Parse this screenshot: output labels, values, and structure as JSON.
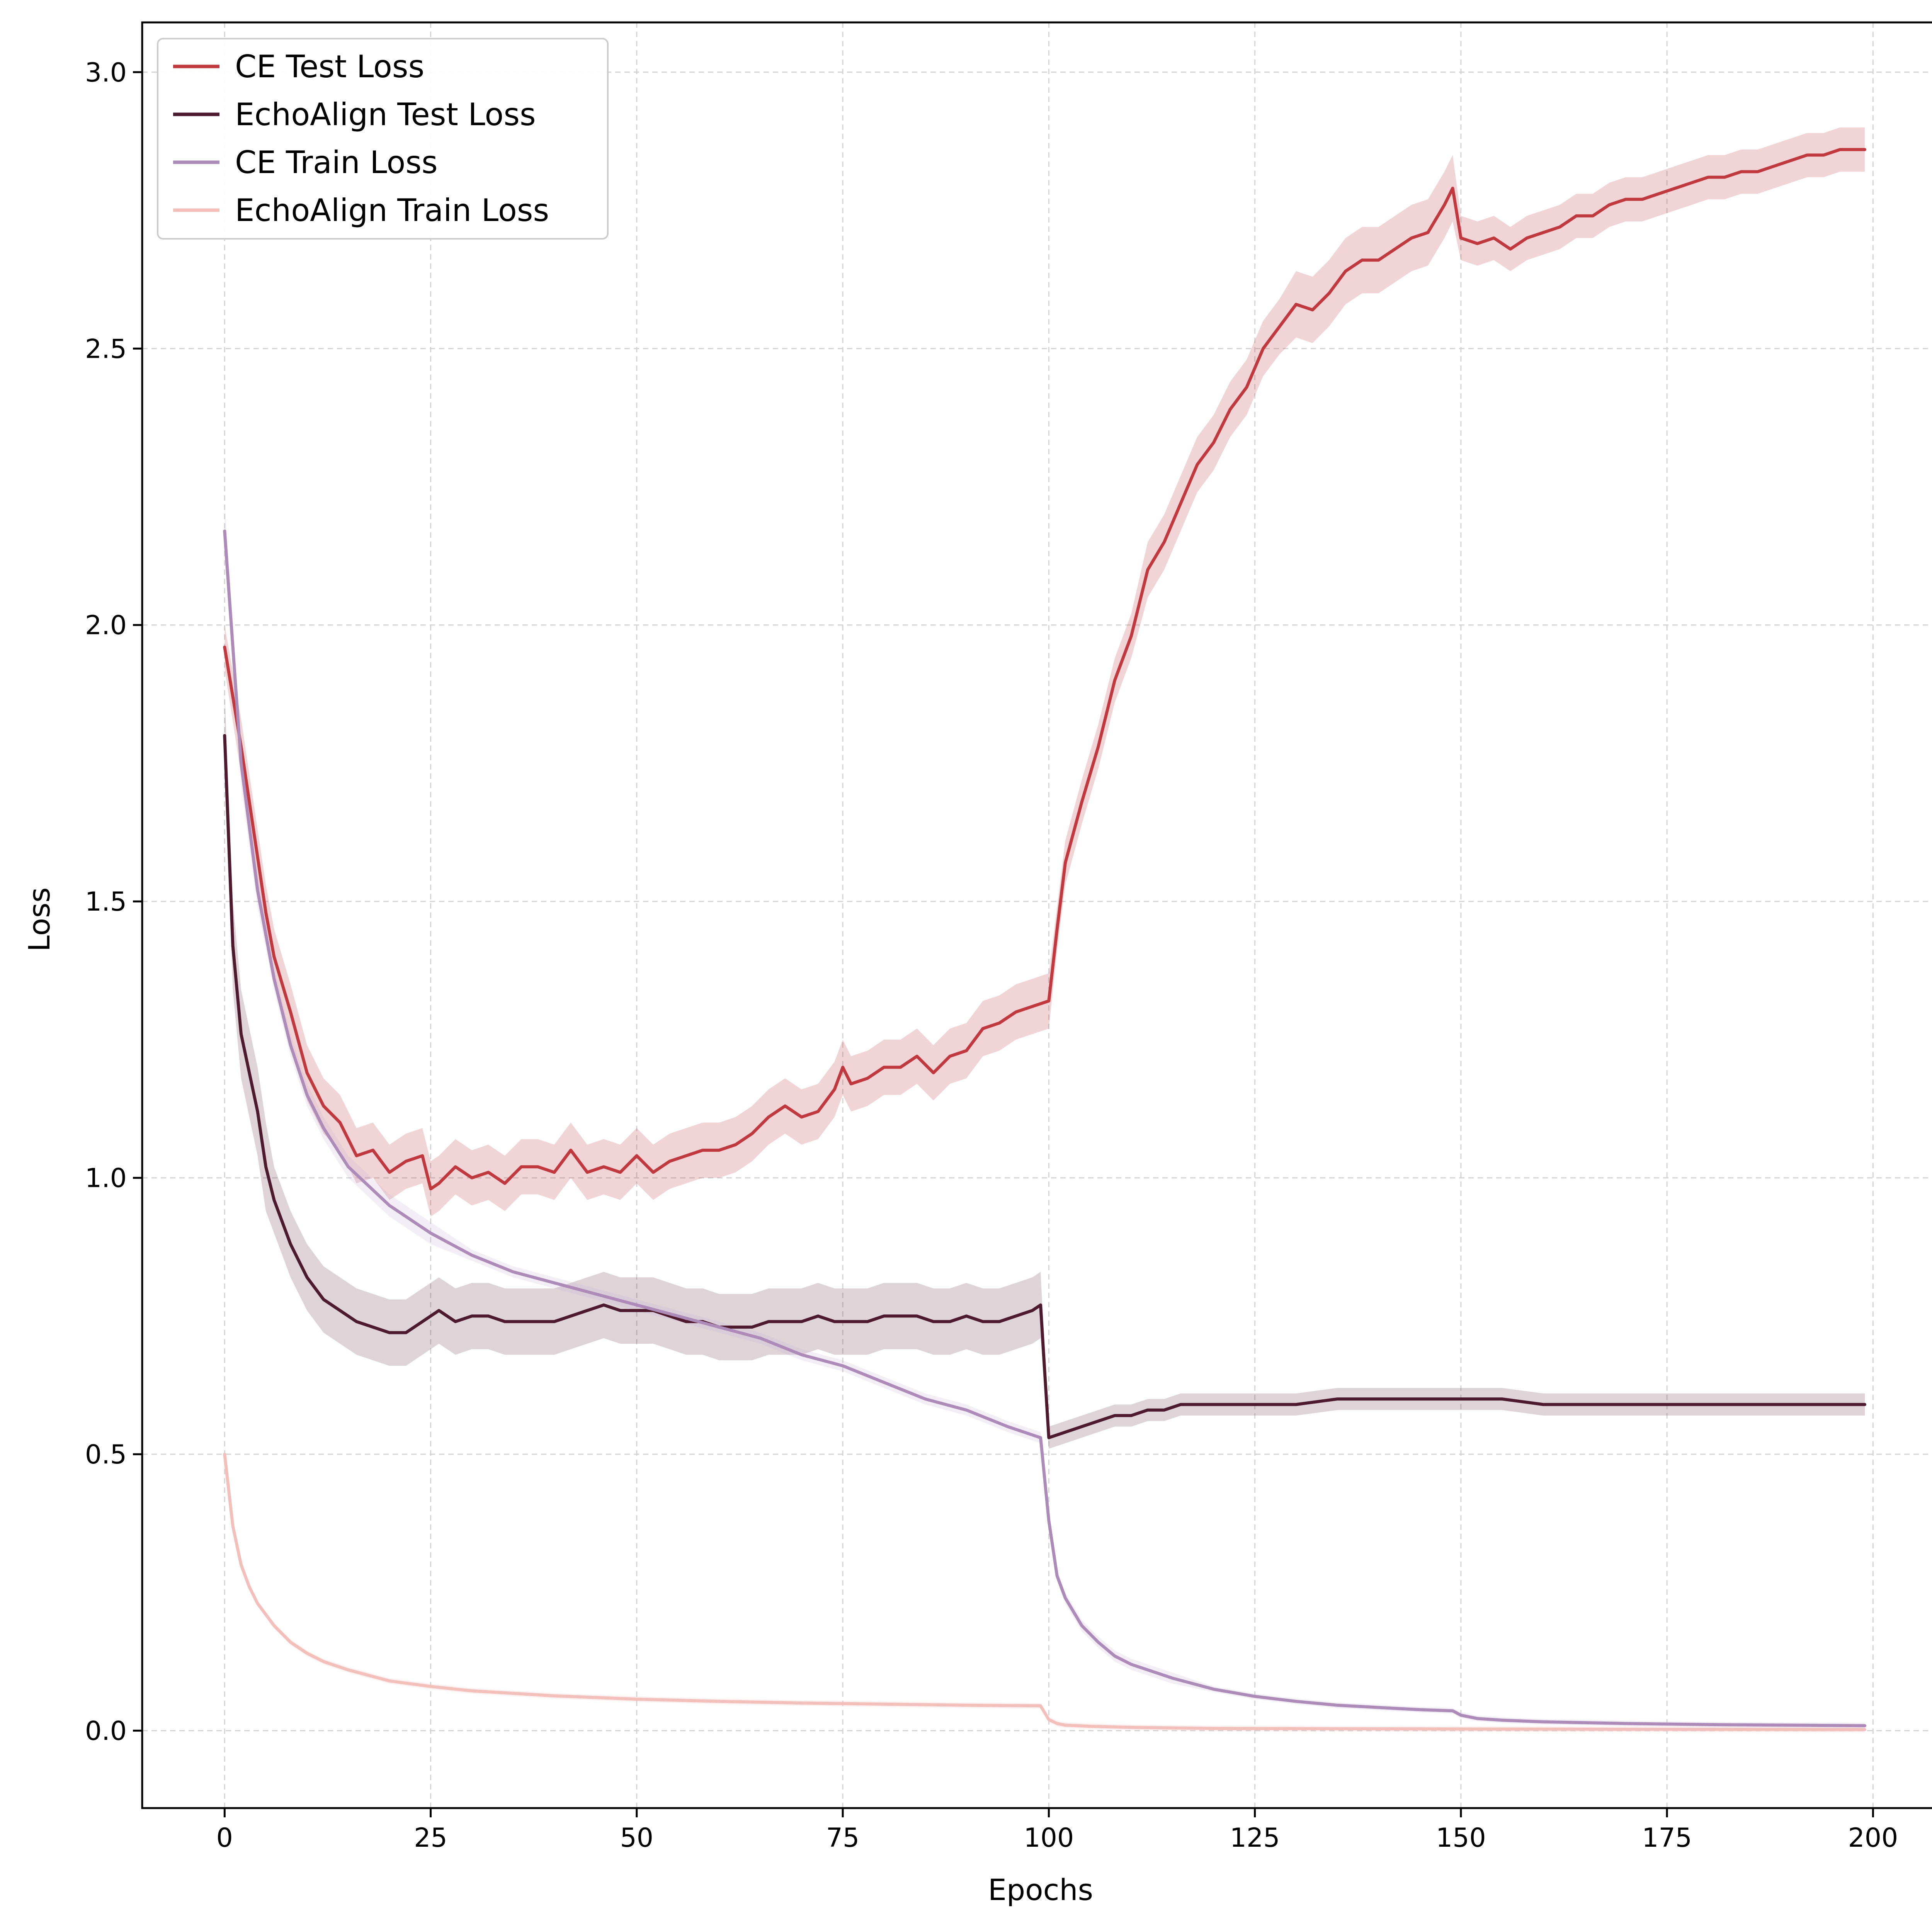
{
  "chart_data": {
    "type": "line",
    "title": "",
    "xlabel": "Epochs",
    "ylabel": "Loss",
    "xlim": [
      -10,
      208
    ],
    "ylim": [
      -0.14,
      3.09
    ],
    "xticks": [
      0,
      25,
      50,
      75,
      100,
      125,
      150,
      175,
      200
    ],
    "xtick_labels": [
      "0",
      "25",
      "50",
      "75",
      "100",
      "125",
      "150",
      "175",
      "200"
    ],
    "yticks": [
      0.0,
      0.5,
      1.0,
      1.5,
      2.0,
      2.5,
      3.0
    ],
    "ytick_labels": [
      "0.0",
      "0.5",
      "1.0",
      "1.5",
      "2.0",
      "2.5",
      "3.0"
    ],
    "grid": true,
    "legend_position": "top-left",
    "shaded_band": "variation across runs",
    "series": [
      {
        "name": "CE Test Loss",
        "color": "#c0393f",
        "band_color": "#c0393f",
        "x": [
          0,
          2,
          5,
          6,
          8,
          10,
          12,
          14,
          16,
          18,
          20,
          22,
          24,
          25,
          26,
          28,
          30,
          32,
          34,
          36,
          38,
          40,
          42,
          44,
          46,
          48,
          50,
          52,
          54,
          56,
          58,
          60,
          62,
          64,
          66,
          68,
          70,
          72,
          74,
          75,
          76,
          78,
          80,
          82,
          84,
          86,
          88,
          90,
          92,
          94,
          96,
          98,
          100,
          101,
          102,
          104,
          106,
          108,
          110,
          112,
          114,
          116,
          118,
          120,
          122,
          124,
          126,
          128,
          130,
          132,
          134,
          136,
          138,
          140,
          142,
          144,
          146,
          148,
          149,
          150,
          152,
          154,
          156,
          158,
          160,
          162,
          164,
          166,
          168,
          170,
          172,
          174,
          176,
          178,
          180,
          182,
          184,
          186,
          188,
          190,
          192,
          194,
          196,
          198,
          199
        ],
        "values": [
          1.96,
          1.78,
          1.48,
          1.4,
          1.3,
          1.19,
          1.13,
          1.1,
          1.04,
          1.05,
          1.01,
          1.03,
          1.04,
          0.98,
          0.99,
          1.02,
          1.0,
          1.01,
          0.99,
          1.02,
          1.02,
          1.01,
          1.05,
          1.01,
          1.02,
          1.01,
          1.04,
          1.01,
          1.03,
          1.04,
          1.05,
          1.05,
          1.06,
          1.08,
          1.11,
          1.13,
          1.11,
          1.12,
          1.16,
          1.2,
          1.17,
          1.18,
          1.2,
          1.2,
          1.22,
          1.19,
          1.22,
          1.23,
          1.27,
          1.28,
          1.3,
          1.31,
          1.32,
          1.45,
          1.57,
          1.68,
          1.78,
          1.9,
          1.98,
          2.1,
          2.15,
          2.22,
          2.29,
          2.33,
          2.39,
          2.43,
          2.5,
          2.54,
          2.58,
          2.57,
          2.6,
          2.64,
          2.66,
          2.66,
          2.68,
          2.7,
          2.71,
          2.76,
          2.79,
          2.7,
          2.69,
          2.7,
          2.68,
          2.7,
          2.71,
          2.72,
          2.74,
          2.74,
          2.76,
          2.77,
          2.77,
          2.78,
          2.79,
          2.8,
          2.81,
          2.81,
          2.82,
          2.82,
          2.83,
          2.84,
          2.85,
          2.85,
          2.86,
          2.86,
          2.86
        ],
        "band": [
          0.04,
          0.05,
          0.05,
          0.05,
          0.05,
          0.05,
          0.05,
          0.05,
          0.05,
          0.05,
          0.05,
          0.05,
          0.05,
          0.05,
          0.05,
          0.05,
          0.05,
          0.05,
          0.05,
          0.05,
          0.05,
          0.05,
          0.05,
          0.05,
          0.05,
          0.05,
          0.05,
          0.05,
          0.05,
          0.05,
          0.05,
          0.05,
          0.05,
          0.05,
          0.05,
          0.05,
          0.05,
          0.05,
          0.05,
          0.05,
          0.05,
          0.05,
          0.05,
          0.05,
          0.05,
          0.05,
          0.05,
          0.05,
          0.05,
          0.05,
          0.05,
          0.05,
          0.05,
          0.04,
          0.04,
          0.04,
          0.04,
          0.04,
          0.04,
          0.05,
          0.05,
          0.05,
          0.05,
          0.05,
          0.05,
          0.05,
          0.05,
          0.05,
          0.06,
          0.06,
          0.06,
          0.06,
          0.06,
          0.06,
          0.06,
          0.06,
          0.06,
          0.06,
          0.06,
          0.04,
          0.04,
          0.04,
          0.04,
          0.04,
          0.04,
          0.04,
          0.04,
          0.04,
          0.04,
          0.04,
          0.04,
          0.04,
          0.04,
          0.04,
          0.04,
          0.04,
          0.04,
          0.04,
          0.04,
          0.04,
          0.04,
          0.04,
          0.04,
          0.04,
          0.04
        ]
      },
      {
        "name": "EchoAlign Test Loss",
        "color": "#4d1a2e",
        "band_color": "#6b3a4e",
        "x": [
          0,
          1,
          2,
          3,
          4,
          5,
          6,
          8,
          10,
          12,
          14,
          16,
          18,
          20,
          22,
          24,
          26,
          28,
          30,
          32,
          34,
          36,
          38,
          40,
          42,
          44,
          46,
          48,
          50,
          52,
          54,
          56,
          58,
          60,
          62,
          64,
          66,
          68,
          70,
          72,
          74,
          76,
          78,
          80,
          82,
          84,
          86,
          88,
          90,
          92,
          94,
          96,
          98,
          99,
          100,
          102,
          104,
          106,
          108,
          110,
          112,
          114,
          116,
          118,
          120,
          125,
          130,
          135,
          140,
          145,
          150,
          155,
          160,
          165,
          170,
          175,
          180,
          185,
          190,
          195,
          199
        ],
        "values": [
          1.8,
          1.42,
          1.26,
          1.19,
          1.12,
          1.02,
          0.96,
          0.88,
          0.82,
          0.78,
          0.76,
          0.74,
          0.73,
          0.72,
          0.72,
          0.74,
          0.76,
          0.74,
          0.75,
          0.75,
          0.74,
          0.74,
          0.74,
          0.74,
          0.75,
          0.76,
          0.77,
          0.76,
          0.76,
          0.76,
          0.75,
          0.74,
          0.74,
          0.73,
          0.73,
          0.73,
          0.74,
          0.74,
          0.74,
          0.75,
          0.74,
          0.74,
          0.74,
          0.75,
          0.75,
          0.75,
          0.74,
          0.74,
          0.75,
          0.74,
          0.74,
          0.75,
          0.76,
          0.77,
          0.53,
          0.54,
          0.55,
          0.56,
          0.57,
          0.57,
          0.58,
          0.58,
          0.59,
          0.59,
          0.59,
          0.59,
          0.59,
          0.6,
          0.6,
          0.6,
          0.6,
          0.6,
          0.59,
          0.59,
          0.59,
          0.59,
          0.59,
          0.59,
          0.59,
          0.59,
          0.59
        ],
        "band": [
          0.08,
          0.08,
          0.08,
          0.08,
          0.08,
          0.08,
          0.06,
          0.06,
          0.06,
          0.06,
          0.06,
          0.06,
          0.06,
          0.06,
          0.06,
          0.06,
          0.06,
          0.06,
          0.06,
          0.06,
          0.06,
          0.06,
          0.06,
          0.06,
          0.06,
          0.06,
          0.06,
          0.06,
          0.06,
          0.06,
          0.06,
          0.06,
          0.06,
          0.06,
          0.06,
          0.06,
          0.06,
          0.06,
          0.06,
          0.06,
          0.06,
          0.06,
          0.06,
          0.06,
          0.06,
          0.06,
          0.06,
          0.06,
          0.06,
          0.06,
          0.06,
          0.06,
          0.06,
          0.06,
          0.02,
          0.02,
          0.02,
          0.02,
          0.02,
          0.02,
          0.02,
          0.02,
          0.02,
          0.02,
          0.02,
          0.02,
          0.02,
          0.02,
          0.02,
          0.02,
          0.02,
          0.02,
          0.02,
          0.02,
          0.02,
          0.02,
          0.02,
          0.02,
          0.02,
          0.02,
          0.02
        ]
      },
      {
        "name": "CE Train Loss",
        "color": "#ad8bb8",
        "band_color": "#c9aed6",
        "x": [
          0,
          2,
          4,
          6,
          8,
          10,
          12,
          15,
          20,
          25,
          30,
          35,
          40,
          45,
          50,
          55,
          60,
          65,
          70,
          75,
          80,
          85,
          90,
          95,
          99,
          100,
          101,
          102,
          104,
          106,
          108,
          110,
          115,
          120,
          125,
          130,
          135,
          140,
          145,
          149,
          150,
          152,
          155,
          160,
          170,
          180,
          190,
          199
        ],
        "values": [
          2.17,
          1.75,
          1.52,
          1.36,
          1.24,
          1.15,
          1.09,
          1.02,
          0.95,
          0.9,
          0.86,
          0.83,
          0.81,
          0.79,
          0.77,
          0.75,
          0.73,
          0.71,
          0.68,
          0.66,
          0.63,
          0.6,
          0.58,
          0.55,
          0.53,
          0.38,
          0.28,
          0.24,
          0.19,
          0.16,
          0.135,
          0.12,
          0.095,
          0.075,
          0.062,
          0.053,
          0.046,
          0.042,
          0.038,
          0.036,
          0.028,
          0.022,
          0.019,
          0.016,
          0.013,
          0.011,
          0.01,
          0.009
        ],
        "band": [
          0.05,
          0.04,
          0.03,
          0.02,
          0.02,
          0.02,
          0.02,
          0.02,
          0.02,
          0.02,
          0.01,
          0.01,
          0.01,
          0.01,
          0.01,
          0.01,
          0.01,
          0.01,
          0.01,
          0.01,
          0.01,
          0.01,
          0.01,
          0.01,
          0.01,
          0.01,
          0.01,
          0.01,
          0.01,
          0.01,
          0.01,
          0.01,
          0.01,
          0.005,
          0.005,
          0.005,
          0.005,
          0.005,
          0.005,
          0.005,
          0.005,
          0.005,
          0.005,
          0.005,
          0.005,
          0.005,
          0.005,
          0.005
        ]
      },
      {
        "name": "EchoAlign Train Loss",
        "color": "#f2bfbb",
        "band_color": "#f2bfbb",
        "x": [
          0,
          1,
          2,
          3,
          4,
          5,
          6,
          8,
          10,
          12,
          15,
          20,
          25,
          30,
          40,
          50,
          60,
          70,
          80,
          90,
          99,
          100,
          101,
          102,
          105,
          110,
          120,
          150,
          199
        ],
        "values": [
          0.5,
          0.37,
          0.3,
          0.26,
          0.23,
          0.21,
          0.19,
          0.16,
          0.14,
          0.125,
          0.11,
          0.09,
          0.08,
          0.072,
          0.063,
          0.057,
          0.053,
          0.05,
          0.048,
          0.046,
          0.045,
          0.02,
          0.013,
          0.01,
          0.008,
          0.006,
          0.004,
          0.003,
          0.002
        ],
        "band": [
          0.02,
          0.01,
          0.01,
          0.005,
          0.005,
          0.005,
          0.005,
          0.005,
          0.005,
          0.005,
          0.005,
          0.005,
          0.005,
          0.005,
          0.005,
          0.005,
          0.005,
          0.005,
          0.005,
          0.005,
          0.005,
          0.005,
          0.005,
          0.005,
          0.005,
          0.005,
          0.005,
          0.005,
          0.005
        ]
      }
    ]
  }
}
